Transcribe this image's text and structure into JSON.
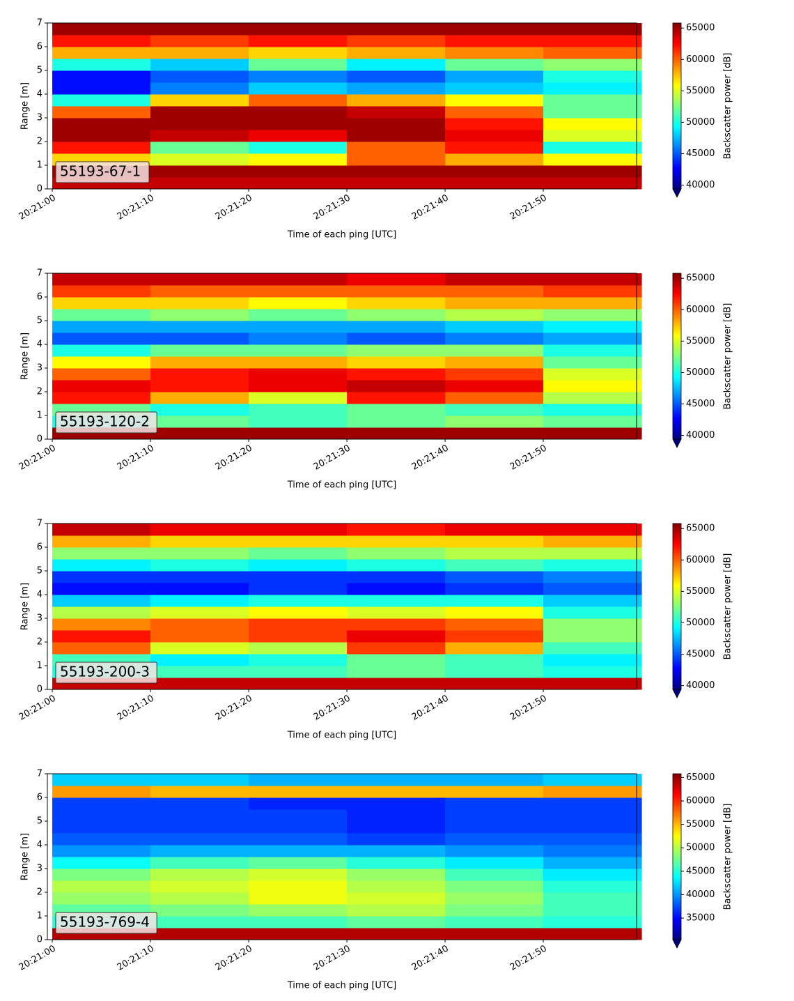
{
  "chart_data": [
    {
      "type": "heatmap",
      "annotation": "55193-67-1",
      "xlabel": "Time of each ping [UTC]",
      "ylabel": "Range [m]",
      "colorbar_label": "Backscatter power [dB]",
      "colormap": "jet",
      "colorbar_extend": "min",
      "x": [
        5,
        15,
        25,
        35,
        45,
        55
      ],
      "y": [
        0.25,
        0.75,
        1.25,
        1.75,
        2.25,
        2.75,
        3.25,
        3.75,
        4.25,
        4.75,
        5.25,
        5.75,
        6.25,
        6.75
      ],
      "z": [
        [
          64000,
          64000,
          64000,
          64000,
          64000,
          64000
        ],
        [
          65000,
          65000,
          65000,
          65000,
          65000,
          65000
        ],
        [
          57000,
          55000,
          56000,
          60000,
          58000,
          56000
        ],
        [
          62000,
          52000,
          50000,
          60000,
          62000,
          50000
        ],
        [
          65000,
          64000,
          63000,
          65000,
          63000,
          55000
        ],
        [
          65000,
          65000,
          65000,
          65000,
          62000,
          56000
        ],
        [
          60000,
          65000,
          65000,
          64000,
          60000,
          52000
        ],
        [
          50000,
          57000,
          60000,
          58000,
          56000,
          52000
        ],
        [
          43000,
          46000,
          48000,
          47000,
          48000,
          49000
        ],
        [
          43000,
          45000,
          46000,
          45000,
          47000,
          50000
        ],
        [
          50000,
          48000,
          52000,
          49000,
          52000,
          53000
        ],
        [
          58000,
          58000,
          57000,
          58000,
          59000,
          60000
        ],
        [
          62000,
          61000,
          62000,
          61000,
          62000,
          62000
        ],
        [
          65000,
          65000,
          65000,
          65000,
          65000,
          65000
        ]
      ],
      "xlim": [
        -0.5,
        59.5
      ],
      "xticks": [
        {
          "value": 0,
          "label": "20:21:00"
        },
        {
          "value": 10,
          "label": "20:21:10"
        },
        {
          "value": 20,
          "label": "20:21:20"
        },
        {
          "value": 30,
          "label": "20:21:30"
        },
        {
          "value": 40,
          "label": "20:21:40"
        },
        {
          "value": 50,
          "label": "20:21:50"
        }
      ],
      "ylim": [
        0,
        7
      ],
      "yticks": [
        0,
        1,
        2,
        3,
        4,
        5,
        6,
        7
      ],
      "clim": [
        39400,
        65800
      ],
      "cticks": [
        40000,
        45000,
        50000,
        55000,
        60000,
        65000
      ]
    },
    {
      "type": "heatmap",
      "annotation": "55193-120-2",
      "xlabel": "Time of each ping [UTC]",
      "ylabel": "Range [m]",
      "colorbar_label": "Backscatter power [dB]",
      "colormap": "jet",
      "colorbar_extend": "min",
      "x": [
        5,
        15,
        25,
        35,
        45,
        55
      ],
      "y": [
        0.25,
        0.75,
        1.25,
        1.75,
        2.25,
        2.75,
        3.25,
        3.75,
        4.25,
        4.75,
        5.25,
        5.75,
        6.25,
        6.75
      ],
      "z": [
        [
          65000,
          65000,
          65000,
          65000,
          65000,
          65000
        ],
        [
          50000,
          52000,
          51000,
          52000,
          53000,
          52000
        ],
        [
          52000,
          50000,
          51000,
          52000,
          51000,
          50000
        ],
        [
          62000,
          58000,
          55000,
          62000,
          60000,
          54000
        ],
        [
          63000,
          62000,
          63000,
          64000,
          63000,
          56000
        ],
        [
          60000,
          62000,
          63000,
          62000,
          61000,
          55000
        ],
        [
          56000,
          58000,
          58000,
          57000,
          58000,
          52000
        ],
        [
          50000,
          52000,
          52000,
          53000,
          53000,
          50000
        ],
        [
          45000,
          45000,
          46000,
          45000,
          46000,
          47000
        ],
        [
          47000,
          47000,
          47000,
          47000,
          48000,
          49000
        ],
        [
          52000,
          53000,
          52000,
          53000,
          54000,
          53000
        ],
        [
          57000,
          57000,
          56000,
          57000,
          58000,
          58000
        ],
        [
          61000,
          60000,
          60000,
          60000,
          60000,
          61000
        ],
        [
          64000,
          64000,
          64000,
          63000,
          64000,
          64000
        ]
      ],
      "xlim": [
        -0.5,
        59.5
      ],
      "xticks": [
        {
          "value": 0,
          "label": "20:21:00"
        },
        {
          "value": 10,
          "label": "20:21:10"
        },
        {
          "value": 20,
          "label": "20:21:20"
        },
        {
          "value": 30,
          "label": "20:21:30"
        },
        {
          "value": 40,
          "label": "20:21:40"
        },
        {
          "value": 50,
          "label": "20:21:50"
        }
      ],
      "ylim": [
        0,
        7
      ],
      "yticks": [
        0,
        1,
        2,
        3,
        4,
        5,
        6,
        7
      ],
      "clim": [
        39400,
        65800
      ],
      "cticks": [
        40000,
        45000,
        50000,
        55000,
        60000,
        65000
      ]
    },
    {
      "type": "heatmap",
      "annotation": "55193-200-3",
      "xlabel": "Time of each ping [UTC]",
      "ylabel": "Range [m]",
      "colorbar_label": "Backscatter power [dB]",
      "colormap": "jet",
      "colorbar_extend": "min",
      "x": [
        5,
        15,
        25,
        35,
        45,
        55
      ],
      "y": [
        0.25,
        0.75,
        1.25,
        1.75,
        2.25,
        2.75,
        3.25,
        3.75,
        4.25,
        4.75,
        5.25,
        5.75,
        6.25,
        6.75
      ],
      "z": [
        [
          64000,
          64000,
          64000,
          64000,
          64000,
          64000
        ],
        [
          50000,
          51000,
          51000,
          52000,
          51000,
          50000
        ],
        [
          51000,
          49000,
          50000,
          52000,
          51000,
          49000
        ],
        [
          60000,
          55000,
          54000,
          61000,
          58000,
          51000
        ],
        [
          62000,
          60000,
          61000,
          63000,
          61000,
          53000
        ],
        [
          59000,
          60000,
          61000,
          61000,
          60000,
          53000
        ],
        [
          54000,
          55000,
          56000,
          55000,
          56000,
          50000
        ],
        [
          48000,
          49000,
          50000,
          50000,
          50000,
          48000
        ],
        [
          43000,
          43000,
          44000,
          43000,
          44000,
          45000
        ],
        [
          44000,
          44000,
          44000,
          44000,
          45000,
          46000
        ],
        [
          49000,
          50000,
          49000,
          50000,
          51000,
          50000
        ],
        [
          53000,
          53000,
          52000,
          53000,
          54000,
          54000
        ],
        [
          58000,
          57000,
          57000,
          57000,
          57000,
          58000
        ],
        [
          64000,
          63000,
          63000,
          62000,
          63000,
          63000
        ]
      ],
      "xlim": [
        -0.5,
        59.5
      ],
      "xticks": [
        {
          "value": 0,
          "label": "20:21:00"
        },
        {
          "value": 10,
          "label": "20:21:10"
        },
        {
          "value": 20,
          "label": "20:21:20"
        },
        {
          "value": 30,
          "label": "20:21:30"
        },
        {
          "value": 40,
          "label": "20:21:40"
        },
        {
          "value": 50,
          "label": "20:21:50"
        }
      ],
      "ylim": [
        0,
        7
      ],
      "yticks": [
        0,
        1,
        2,
        3,
        4,
        5,
        6,
        7
      ],
      "clim": [
        39400,
        65800
      ],
      "cticks": [
        40000,
        45000,
        50000,
        55000,
        60000,
        65000
      ]
    },
    {
      "type": "heatmap",
      "annotation": "55193-769-4",
      "xlabel": "Time of each ping [UTC]",
      "ylabel": "Range [m]",
      "colorbar_label": "Backscatter power [dB]",
      "colormap": "jet",
      "colorbar_extend": "min",
      "x": [
        5,
        15,
        25,
        35,
        45,
        55
      ],
      "y": [
        0.25,
        0.75,
        1.25,
        1.75,
        2.25,
        2.75,
        3.25,
        3.75,
        4.25,
        4.75,
        5.25,
        5.75,
        6.25,
        6.75
      ],
      "z": [
        [
          64000,
          64000,
          64000,
          64000,
          64000,
          64000
        ],
        [
          45000,
          46000,
          46000,
          47000,
          46000,
          45000
        ],
        [
          47000,
          48000,
          49000,
          50000,
          48000,
          46000
        ],
        [
          49000,
          50000,
          52000,
          51000,
          49000,
          46000
        ],
        [
          50000,
          51000,
          52000,
          50000,
          48000,
          45000
        ],
        [
          48000,
          50000,
          51000,
          49000,
          46000,
          43000
        ],
        [
          44000,
          46000,
          47000,
          45000,
          43000,
          41000
        ],
        [
          40000,
          41000,
          41000,
          41000,
          40000,
          39000
        ],
        [
          38000,
          38000,
          38000,
          37000,
          38000,
          38000
        ],
        [
          37000,
          37000,
          37000,
          36000,
          37000,
          37000
        ],
        [
          37000,
          37000,
          37000,
          36000,
          37000,
          37000
        ],
        [
          37000,
          37000,
          36000,
          36000,
          37000,
          37000
        ],
        [
          56000,
          55000,
          55000,
          55000,
          55000,
          56000
        ],
        [
          42000,
          42000,
          41000,
          41000,
          41000,
          42000
        ]
      ],
      "xlim": [
        -0.5,
        59.5
      ],
      "xticks": [
        {
          "value": 0,
          "label": "20:21:00"
        },
        {
          "value": 10,
          "label": "20:21:10"
        },
        {
          "value": 20,
          "label": "20:21:20"
        },
        {
          "value": 30,
          "label": "20:21:30"
        },
        {
          "value": 40,
          "label": "20:21:40"
        },
        {
          "value": 50,
          "label": "20:21:50"
        }
      ],
      "ylim": [
        0,
        7
      ],
      "yticks": [
        0,
        1,
        2,
        3,
        4,
        5,
        6,
        7
      ],
      "clim": [
        30400,
        65800
      ],
      "cticks": [
        35000,
        40000,
        45000,
        50000,
        55000,
        60000,
        65000
      ]
    }
  ]
}
